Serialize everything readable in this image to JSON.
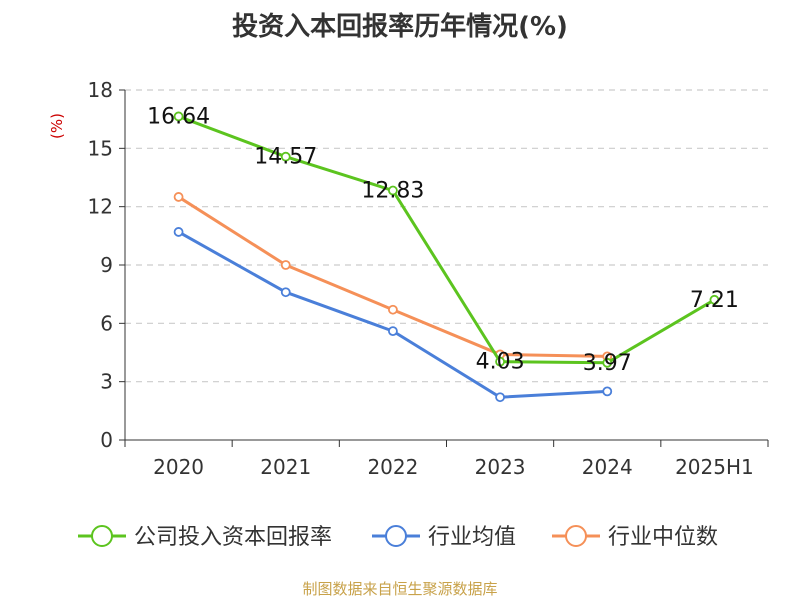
{
  "chart_data": {
    "type": "line",
    "title": "投资入本回报率历年情况(%)",
    "ylabel": "(%)",
    "xlabel": "",
    "categories": [
      "2020",
      "2021",
      "2022",
      "2023",
      "2024",
      "2025H1"
    ],
    "ylim": [
      0,
      18
    ],
    "yticks": [
      0,
      3,
      6,
      9,
      12,
      15,
      18
    ],
    "grid": "horizontal-dashed",
    "legend_position": "bottom",
    "series": [
      {
        "name": "公司投入资本回报率",
        "color": "#5cc41f",
        "values": [
          16.64,
          14.57,
          12.83,
          4.03,
          3.97,
          7.21
        ],
        "labels": [
          "16.64",
          "14.57",
          "12.83",
          "4.03",
          "3.97",
          "7.21"
        ]
      },
      {
        "name": "行业均值",
        "color": "#4a7fd9",
        "values": [
          10.7,
          7.6,
          5.6,
          2.2,
          2.5,
          null
        ]
      },
      {
        "name": "行业中位数",
        "color": "#f59058",
        "values": [
          12.5,
          9.0,
          6.7,
          4.4,
          4.3,
          null
        ]
      }
    ]
  },
  "footer": {
    "source": "制图数据来自恒生聚源数据库"
  }
}
